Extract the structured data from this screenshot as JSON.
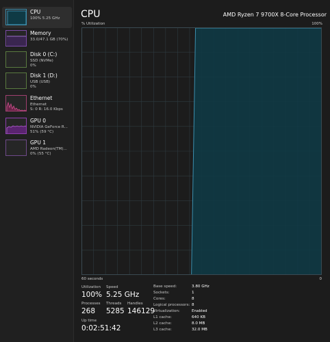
{
  "colors": {
    "cpu_line": "#3c8fae",
    "cpu_fill": "#0f3a45",
    "memory_accent": "#7b4ba8",
    "ethernet_accent": "#c74b8b",
    "gpu_accent": "#8f3fb0",
    "grid": "#2e3b41"
  },
  "sidebar": {
    "items": [
      {
        "name": "CPU",
        "sub1": "100%  5.25 GHz",
        "sub2": "",
        "icon": "cpu-thumb-icon"
      },
      {
        "name": "Memory",
        "sub1": "33.0/47.1 GB (70%)",
        "sub2": "",
        "icon": "memory-thumb-icon"
      },
      {
        "name": "Disk 0 (C:)",
        "sub1": "SSD (NVMe)",
        "sub2": "0%",
        "icon": "disk-thumb-icon"
      },
      {
        "name": "Disk 1 (D:)",
        "sub1": "USB (USB)",
        "sub2": "0%",
        "icon": "disk-thumb-icon"
      },
      {
        "name": "Ethernet",
        "sub1": "Ethernet",
        "sub2": "S: 0  R: 16.0 Kbps",
        "icon": "ethernet-thumb-icon"
      },
      {
        "name": "GPU 0",
        "sub1": "NVIDIA GeForce R...",
        "sub2": "51%  (59 °C)",
        "icon": "gpu-thumb-icon"
      },
      {
        "name": "GPU 1",
        "sub1": "AMD Radeon(TM)...",
        "sub2": "0%  (55 °C)",
        "icon": "gpu-thumb-icon"
      }
    ]
  },
  "header": {
    "title": "CPU",
    "model": "AMD Ryzen 7 9700X 8-Core Processor"
  },
  "graph": {
    "y_label": "% Utilization",
    "y_max_label": "100%",
    "x_left_label": "60 seconds",
    "x_right_label": "0",
    "utilization_series": [
      0,
      0,
      0,
      0,
      0,
      0,
      0,
      0,
      0,
      0,
      0,
      0,
      0,
      0,
      0,
      0,
      0,
      0,
      0,
      0,
      0,
      0,
      0,
      0,
      0,
      0,
      0,
      0,
      100,
      100,
      100,
      100,
      100,
      100,
      100,
      100,
      100,
      100,
      100,
      100,
      100,
      100,
      100,
      100,
      100,
      100,
      100,
      100,
      100,
      100,
      100,
      100,
      100,
      100,
      100,
      100,
      100,
      100,
      100,
      100
    ]
  },
  "stats": {
    "utilization_label": "Utilization",
    "utilization_value": "100%",
    "speed_label": "Speed",
    "speed_value": "5.25 GHz",
    "processes_label": "Processes",
    "processes_value": "268",
    "threads_label": "Threads",
    "threads_value": "5285",
    "handles_label": "Handles",
    "handles_value": "146129",
    "uptime_label": "Up time",
    "uptime_value": "0:02:51:42"
  },
  "specs": [
    {
      "key": "Base speed:",
      "value": "3.80 GHz"
    },
    {
      "key": "Sockets:",
      "value": "1"
    },
    {
      "key": "Cores:",
      "value": "8"
    },
    {
      "key": "Logical processors:",
      "value": "8"
    },
    {
      "key": "Virtualization:",
      "value": "Enabled"
    },
    {
      "key": "L1 cache:",
      "value": "640 KB"
    },
    {
      "key": "L2 cache:",
      "value": "8.0 MB"
    },
    {
      "key": "L3 cache:",
      "value": "32.0 MB"
    }
  ]
}
